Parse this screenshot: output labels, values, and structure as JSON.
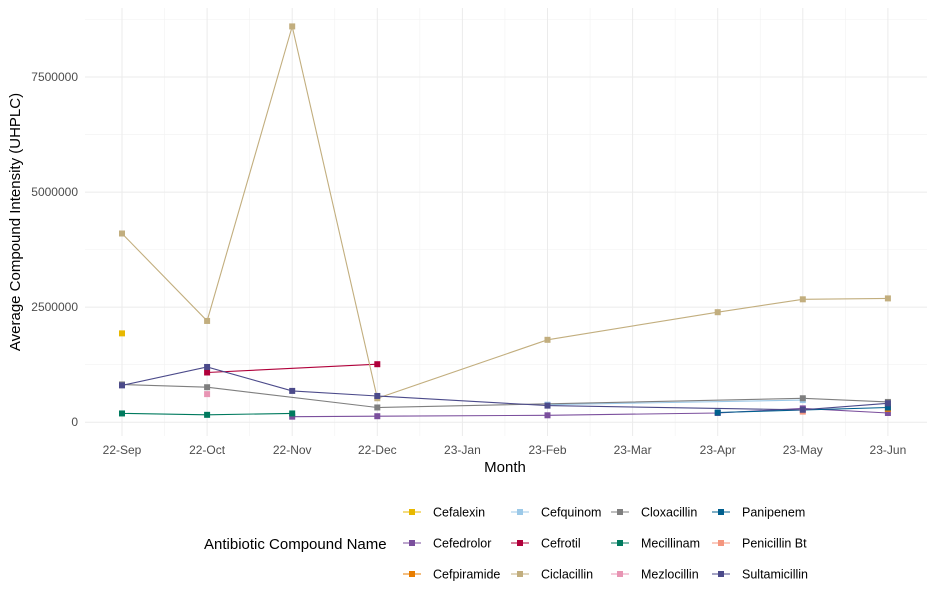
{
  "chart_data": {
    "type": "line",
    "xlabel": "Month",
    "ylabel": "Average Compound Intensity (UHPLC)",
    "categories": [
      "22-Sep",
      "22-Oct",
      "22-Nov",
      "22-Dec",
      "23-Jan",
      "23-Feb",
      "23-Mar",
      "23-Apr",
      "23-May",
      "23-Jun"
    ],
    "ylim": [
      -300000,
      9000000
    ],
    "yticks": [
      0,
      2500000,
      5000000,
      7500000
    ],
    "ytick_labels": [
      "0",
      "2500000",
      "5000000",
      "7500000"
    ],
    "grid": true,
    "legend": {
      "title": "Antibiotic Compound Name",
      "position": "bottom",
      "entries": [
        "Cefalexin",
        "Cefedrolor",
        "Cefpiramide",
        "Cefquinom",
        "Cefrotil",
        "Ciclacillin",
        "Cloxacillin",
        "Mecillinam",
        "Mezlocillin",
        "Panipenem",
        "Penicillin Bt",
        "Sultamicillin"
      ]
    },
    "series": [
      {
        "name": "Cefalexin",
        "color": "#E8B800",
        "points": [
          [
            "22-Sep",
            1930000
          ]
        ]
      },
      {
        "name": "Cefedrolor",
        "color": "#7B4F9D",
        "points": [
          [
            "22-Nov",
            120000
          ],
          [
            "22-Dec",
            130000
          ],
          [
            "23-Feb",
            150000
          ],
          [
            "23-Apr",
            200000
          ],
          [
            "23-May",
            300000
          ],
          [
            "23-Jun",
            200000
          ]
        ]
      },
      {
        "name": "Cefpiramide",
        "color": "#E87D00",
        "points": [
          [
            "23-Jun",
            290000
          ]
        ]
      },
      {
        "name": "Cefquinom",
        "color": "#9CC9E8",
        "points": [
          [
            "23-Feb",
            380000
          ],
          [
            "23-May",
            480000
          ]
        ]
      },
      {
        "name": "Cefrotil",
        "color": "#B0003A",
        "points": [
          [
            "22-Oct",
            1080000
          ],
          [
            "22-Dec",
            1260000
          ]
        ]
      },
      {
        "name": "Ciclacillin",
        "color": "#C2AE7E",
        "points": [
          [
            "22-Sep",
            4100000
          ],
          [
            "22-Oct",
            2200000
          ],
          [
            "22-Nov",
            8600000
          ],
          [
            "22-Dec",
            520000
          ],
          [
            "23-Feb",
            1790000
          ],
          [
            "23-Apr",
            2390000
          ],
          [
            "23-May",
            2670000
          ],
          [
            "23-Jun",
            2690000
          ]
        ]
      },
      {
        "name": "Cloxacillin",
        "color": "#7F7F7F",
        "points": [
          [
            "22-Sep",
            820000
          ],
          [
            "22-Oct",
            760000
          ],
          [
            "22-Dec",
            320000
          ],
          [
            "23-May",
            520000
          ],
          [
            "23-Jun",
            440000
          ]
        ]
      },
      {
        "name": "Mecillinam",
        "color": "#007A5E",
        "points": [
          [
            "22-Sep",
            190000
          ],
          [
            "22-Oct",
            160000
          ],
          [
            "22-Nov",
            190000
          ]
        ]
      },
      {
        "name": "Mezlocillin",
        "color": "#E895B4",
        "points": [
          [
            "22-Oct",
            610000
          ]
        ]
      },
      {
        "name": "Panipenem",
        "color": "#005F8E",
        "points": [
          [
            "23-Apr",
            210000
          ],
          [
            "23-Jun",
            320000
          ]
        ]
      },
      {
        "name": "Penicillin Bt",
        "color": "#F4967E",
        "points": [
          [
            "23-May",
            230000
          ]
        ]
      },
      {
        "name": "Sultamicillin",
        "color": "#4B4A8A",
        "points": [
          [
            "22-Sep",
            800000
          ],
          [
            "22-Oct",
            1200000
          ],
          [
            "22-Nov",
            680000
          ],
          [
            "22-Dec",
            570000
          ],
          [
            "23-Feb",
            360000
          ],
          [
            "23-May",
            270000
          ],
          [
            "23-Jun",
            410000
          ]
        ]
      }
    ]
  }
}
